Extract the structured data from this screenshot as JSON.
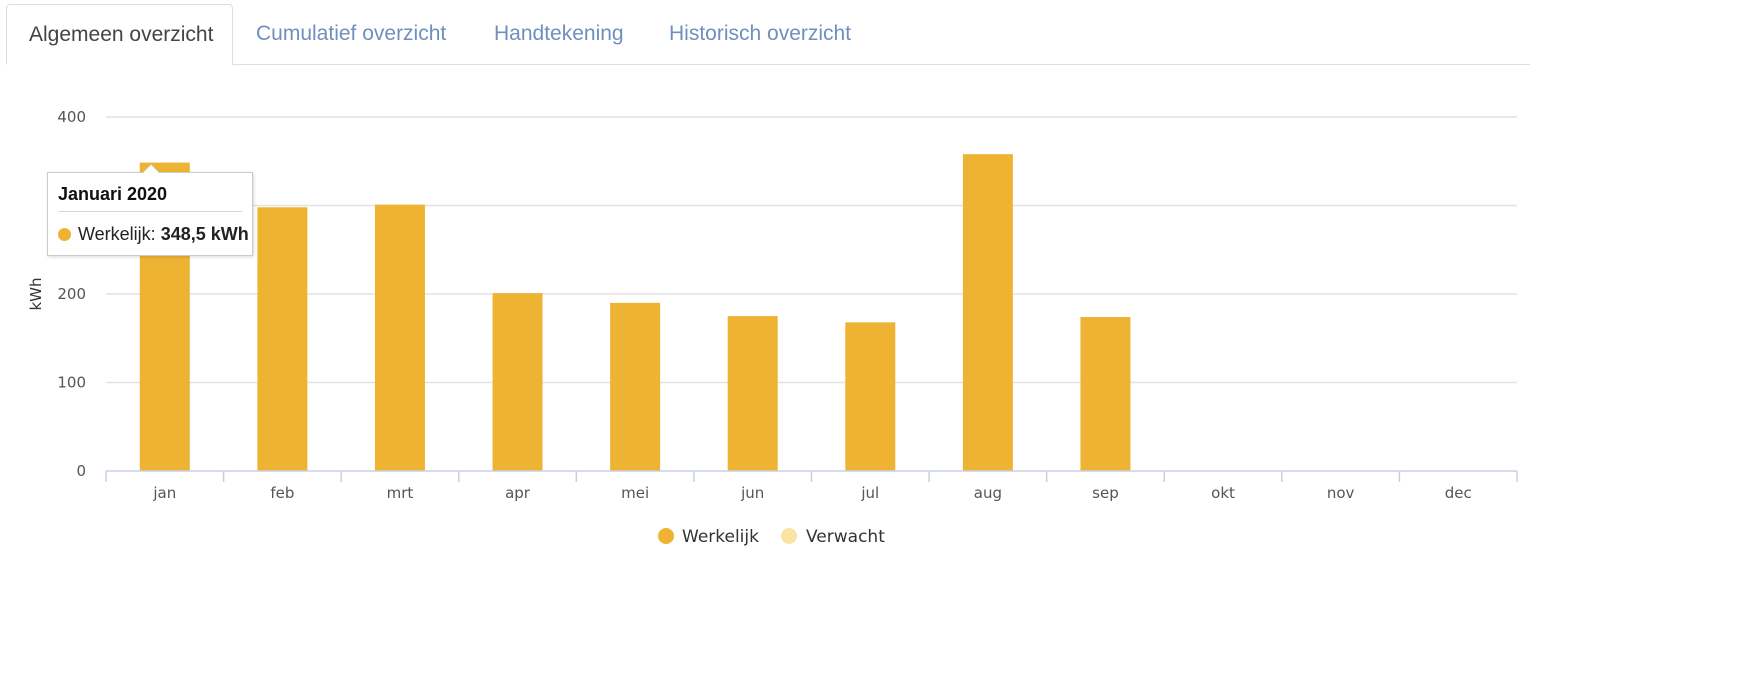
{
  "tabs": [
    {
      "label": "Algemeen overzicht",
      "active": true
    },
    {
      "label": "Cumulatief overzicht",
      "active": false
    },
    {
      "label": "Handtekening",
      "active": false
    },
    {
      "label": "Historisch overzicht",
      "active": false
    }
  ],
  "tooltip": {
    "title": "Januari 2020",
    "series_label": "Werkelijk:",
    "value": "348,5 kWh"
  },
  "chart_data": {
    "type": "bar",
    "title": "",
    "xlabel": "",
    "ylabel": "kWh",
    "ylim": [
      0,
      400
    ],
    "yticks": [
      0,
      100,
      200,
      400
    ],
    "grid": true,
    "legend": "bottom-center",
    "categories": [
      "jan",
      "feb",
      "mrt",
      "apr",
      "mei",
      "jun",
      "jul",
      "aug",
      "sep",
      "okt",
      "nov",
      "dec"
    ],
    "series": [
      {
        "name": "Werkelijk",
        "color": "#efb333",
        "values": [
          348.5,
          298,
          301,
          201,
          190,
          175,
          168,
          358,
          174,
          null,
          null,
          null
        ]
      },
      {
        "name": "Verwacht",
        "color": "#fbe3a6",
        "values": [
          null,
          null,
          null,
          null,
          null,
          null,
          null,
          null,
          null,
          null,
          null,
          null
        ]
      }
    ]
  }
}
